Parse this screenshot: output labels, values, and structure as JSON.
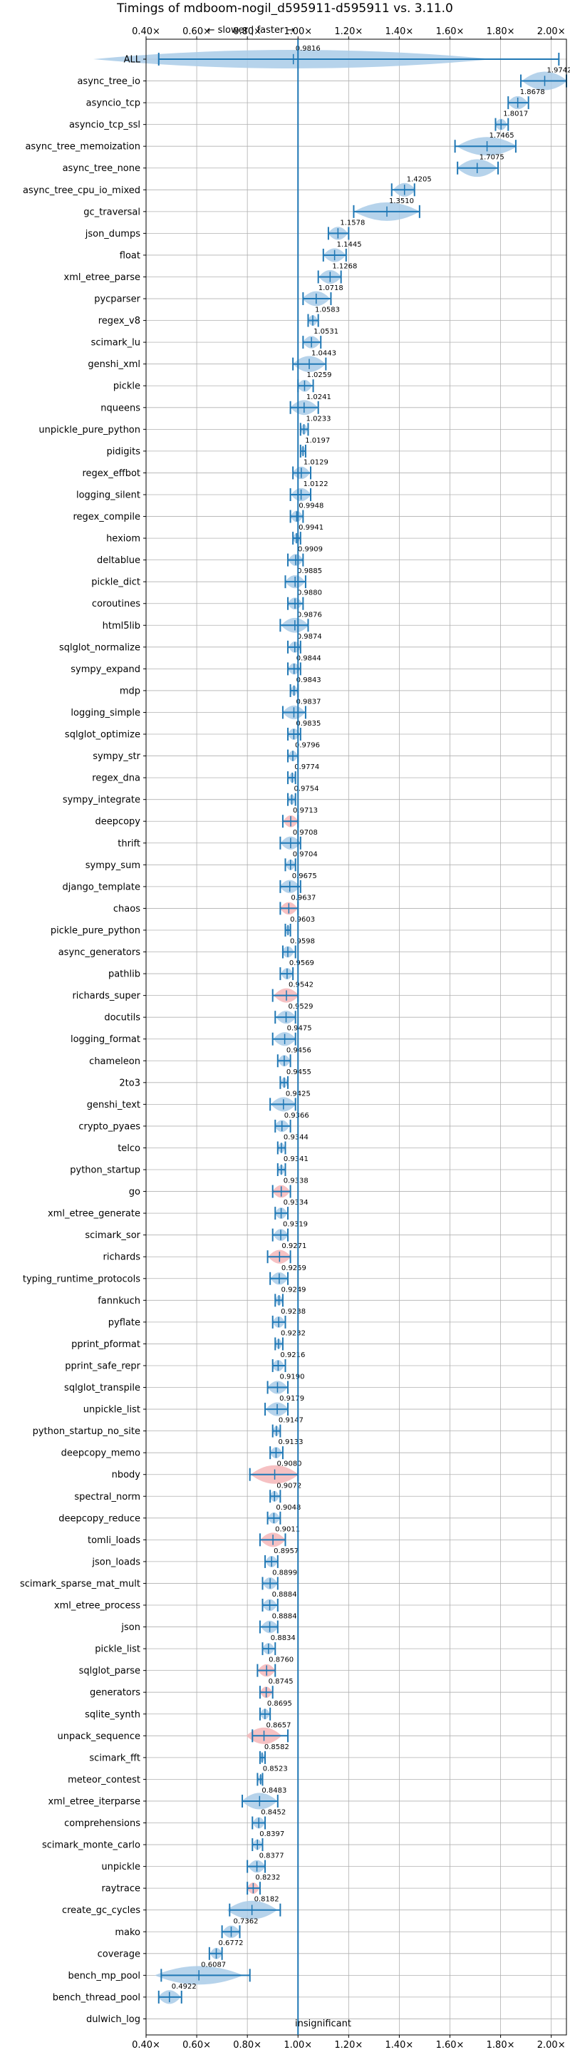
{
  "chart_data": {
    "type": "violin",
    "title": "Timings of mdboom-nogil_d595911-d595911 vs. 3.11.0",
    "direction_label": "← slower | faster →",
    "insignificant_label": "insignificant",
    "xlim": [
      0.4,
      2.06
    ],
    "xticks": [
      0.4,
      0.6,
      0.8,
      1.0,
      1.2,
      1.4,
      1.6,
      1.8,
      2.0
    ],
    "xtick_labels": [
      "0.40×",
      "0.60×",
      "0.80×",
      "1.00×",
      "1.20×",
      "1.40×",
      "1.60×",
      "1.80×",
      "2.00×"
    ],
    "reference_line": 1.0,
    "grid": true,
    "colors": {
      "normal": "#1f77b4",
      "violin_normal": "#a9cbe8",
      "violin_slow": "#f4b6b8",
      "line": "#1f77b4"
    },
    "benchmarks": [
      {
        "name": "ALL",
        "value": 0.9816,
        "label": "0.9816",
        "lo": 0.45,
        "hi": 2.03
      },
      {
        "name": "async_tree_io",
        "value": 1.9742,
        "label": "1.9742",
        "lo": 1.88,
        "hi": 2.06
      },
      {
        "name": "asyncio_tcp",
        "value": 1.8678,
        "label": "1.8678",
        "lo": 1.83,
        "hi": 1.91
      },
      {
        "name": "asyncio_tcp_ssl",
        "value": 1.8017,
        "label": "1.8017",
        "lo": 1.78,
        "hi": 1.83
      },
      {
        "name": "async_tree_memoization",
        "value": 1.7465,
        "label": "1.7465",
        "lo": 1.62,
        "hi": 1.86
      },
      {
        "name": "async_tree_none",
        "value": 1.7075,
        "label": "1.7075",
        "lo": 1.63,
        "hi": 1.79
      },
      {
        "name": "async_tree_cpu_io_mixed",
        "value": 1.4205,
        "label": "1.4205",
        "lo": 1.37,
        "hi": 1.46
      },
      {
        "name": "gc_traversal",
        "value": 1.351,
        "label": "1.3510",
        "lo": 1.22,
        "hi": 1.48
      },
      {
        "name": "json_dumps",
        "value": 1.1578,
        "label": "1.1578",
        "lo": 1.12,
        "hi": 1.2
      },
      {
        "name": "float",
        "value": 1.1445,
        "label": "1.1445",
        "lo": 1.1,
        "hi": 1.19
      },
      {
        "name": "xml_etree_parse",
        "value": 1.1268,
        "label": "1.1268",
        "lo": 1.08,
        "hi": 1.17
      },
      {
        "name": "pycparser",
        "value": 1.0718,
        "label": "1.0718",
        "lo": 1.02,
        "hi": 1.13
      },
      {
        "name": "regex_v8",
        "value": 1.0583,
        "label": "1.0583",
        "lo": 1.04,
        "hi": 1.08
      },
      {
        "name": "scimark_lu",
        "value": 1.0531,
        "label": "1.0531",
        "lo": 1.02,
        "hi": 1.09
      },
      {
        "name": "genshi_xml",
        "value": 1.0443,
        "label": "1.0443",
        "lo": 0.98,
        "hi": 1.11
      },
      {
        "name": "pickle",
        "value": 1.0259,
        "label": "1.0259",
        "lo": 1.0,
        "hi": 1.06
      },
      {
        "name": "nqueens",
        "value": 1.0241,
        "label": "1.0241",
        "lo": 0.97,
        "hi": 1.08
      },
      {
        "name": "unpickle_pure_python",
        "value": 1.0233,
        "label": "1.0233",
        "lo": 1.01,
        "hi": 1.04
      },
      {
        "name": "pidigits",
        "value": 1.0197,
        "label": "1.0197",
        "lo": 1.01,
        "hi": 1.03
      },
      {
        "name": "regex_effbot",
        "value": 1.0129,
        "label": "1.0129",
        "lo": 0.98,
        "hi": 1.05
      },
      {
        "name": "logging_silent",
        "value": 1.0122,
        "label": "1.0122",
        "lo": 0.97,
        "hi": 1.05
      },
      {
        "name": "regex_compile",
        "value": 0.9948,
        "label": "0.9948",
        "lo": 0.97,
        "hi": 1.02
      },
      {
        "name": "hexiom",
        "value": 0.9941,
        "label": "0.9941",
        "lo": 0.98,
        "hi": 1.01
      },
      {
        "name": "deltablue",
        "value": 0.9909,
        "label": "0.9909",
        "lo": 0.96,
        "hi": 1.02
      },
      {
        "name": "pickle_dict",
        "value": 0.9885,
        "label": "0.9885",
        "lo": 0.95,
        "hi": 1.03
      },
      {
        "name": "coroutines",
        "value": 0.988,
        "label": "0.9880",
        "lo": 0.96,
        "hi": 1.02
      },
      {
        "name": "html5lib",
        "value": 0.9876,
        "label": "0.9876",
        "lo": 0.93,
        "hi": 1.04
      },
      {
        "name": "sqlglot_normalize",
        "value": 0.9874,
        "label": "0.9874",
        "lo": 0.96,
        "hi": 1.01
      },
      {
        "name": "sympy_expand",
        "value": 0.9844,
        "label": "0.9844",
        "lo": 0.96,
        "hi": 1.01
      },
      {
        "name": "mdp",
        "value": 0.9843,
        "label": "0.9843",
        "lo": 0.97,
        "hi": 1.0
      },
      {
        "name": "logging_simple",
        "value": 0.9837,
        "label": "0.9837",
        "lo": 0.94,
        "hi": 1.03
      },
      {
        "name": "sqlglot_optimize",
        "value": 0.9835,
        "label": "0.9835",
        "lo": 0.96,
        "hi": 1.01
      },
      {
        "name": "sympy_str",
        "value": 0.9796,
        "label": "0.9796",
        "lo": 0.96,
        "hi": 1.0
      },
      {
        "name": "regex_dna",
        "value": 0.9774,
        "label": "0.9774",
        "lo": 0.96,
        "hi": 0.99
      },
      {
        "name": "sympy_integrate",
        "value": 0.9754,
        "label": "0.9754",
        "lo": 0.96,
        "hi": 0.99
      },
      {
        "name": "deepcopy",
        "value": 0.9713,
        "label": "0.9713",
        "lo": 0.94,
        "hi": 1.0,
        "slower": true
      },
      {
        "name": "thrift",
        "value": 0.9708,
        "label": "0.9708",
        "lo": 0.93,
        "hi": 1.01
      },
      {
        "name": "sympy_sum",
        "value": 0.9704,
        "label": "0.9704",
        "lo": 0.95,
        "hi": 0.99
      },
      {
        "name": "django_template",
        "value": 0.9675,
        "label": "0.9675",
        "lo": 0.93,
        "hi": 1.01
      },
      {
        "name": "chaos",
        "value": 0.9637,
        "label": "0.9637",
        "lo": 0.93,
        "hi": 1.0,
        "slower": true
      },
      {
        "name": "pickle_pure_python",
        "value": 0.9603,
        "label": "0.9603",
        "lo": 0.95,
        "hi": 0.97
      },
      {
        "name": "async_generators",
        "value": 0.9598,
        "label": "0.9598",
        "lo": 0.94,
        "hi": 0.99
      },
      {
        "name": "pathlib",
        "value": 0.9569,
        "label": "0.9569",
        "lo": 0.93,
        "hi": 0.98
      },
      {
        "name": "richards_super",
        "value": 0.9542,
        "label": "0.9542",
        "lo": 0.9,
        "hi": 1.0,
        "slower": true
      },
      {
        "name": "docutils",
        "value": 0.9529,
        "label": "0.9529",
        "lo": 0.91,
        "hi": 0.99
      },
      {
        "name": "logging_format",
        "value": 0.9475,
        "label": "0.9475",
        "lo": 0.9,
        "hi": 0.99
      },
      {
        "name": "chameleon",
        "value": 0.9456,
        "label": "0.9456",
        "lo": 0.92,
        "hi": 0.97
      },
      {
        "name": "2to3",
        "value": 0.9455,
        "label": "0.9455",
        "lo": 0.93,
        "hi": 0.96
      },
      {
        "name": "genshi_text",
        "value": 0.9425,
        "label": "0.9425",
        "lo": 0.89,
        "hi": 0.99
      },
      {
        "name": "crypto_pyaes",
        "value": 0.9366,
        "label": "0.9366",
        "lo": 0.91,
        "hi": 0.97
      },
      {
        "name": "telco",
        "value": 0.9344,
        "label": "0.9344",
        "lo": 0.92,
        "hi": 0.95
      },
      {
        "name": "python_startup",
        "value": 0.9341,
        "label": "0.9341",
        "lo": 0.92,
        "hi": 0.95
      },
      {
        "name": "go",
        "value": 0.9338,
        "label": "0.9338",
        "lo": 0.9,
        "hi": 0.97,
        "slower": true
      },
      {
        "name": "xml_etree_generate",
        "value": 0.9334,
        "label": "0.9334",
        "lo": 0.91,
        "hi": 0.96
      },
      {
        "name": "scimark_sor",
        "value": 0.9319,
        "label": "0.9319",
        "lo": 0.9,
        "hi": 0.96
      },
      {
        "name": "richards",
        "value": 0.9271,
        "label": "0.9271",
        "lo": 0.88,
        "hi": 0.97,
        "slower": true
      },
      {
        "name": "typing_runtime_protocols",
        "value": 0.9259,
        "label": "0.9259",
        "lo": 0.89,
        "hi": 0.96
      },
      {
        "name": "fannkuch",
        "value": 0.9249,
        "label": "0.9249",
        "lo": 0.91,
        "hi": 0.94
      },
      {
        "name": "pyflate",
        "value": 0.9238,
        "label": "0.9238",
        "lo": 0.9,
        "hi": 0.95
      },
      {
        "name": "pprint_pformat",
        "value": 0.9232,
        "label": "0.9232",
        "lo": 0.91,
        "hi": 0.94
      },
      {
        "name": "pprint_safe_repr",
        "value": 0.9216,
        "label": "0.9216",
        "lo": 0.9,
        "hi": 0.95
      },
      {
        "name": "sqlglot_transpile",
        "value": 0.919,
        "label": "0.9190",
        "lo": 0.88,
        "hi": 0.96
      },
      {
        "name": "unpickle_list",
        "value": 0.9179,
        "label": "0.9179",
        "lo": 0.87,
        "hi": 0.96
      },
      {
        "name": "python_startup_no_site",
        "value": 0.9147,
        "label": "0.9147",
        "lo": 0.9,
        "hi": 0.93
      },
      {
        "name": "deepcopy_memo",
        "value": 0.9133,
        "label": "0.9133",
        "lo": 0.89,
        "hi": 0.94
      },
      {
        "name": "nbody",
        "value": 0.908,
        "label": "0.9080",
        "lo": 0.81,
        "hi": 1.0,
        "slower": true
      },
      {
        "name": "spectral_norm",
        "value": 0.9072,
        "label": "0.9072",
        "lo": 0.89,
        "hi": 0.93
      },
      {
        "name": "deepcopy_reduce",
        "value": 0.9048,
        "label": "0.9048",
        "lo": 0.88,
        "hi": 0.93
      },
      {
        "name": "tomli_loads",
        "value": 0.9011,
        "label": "0.9011",
        "lo": 0.85,
        "hi": 0.95,
        "slower": true
      },
      {
        "name": "json_loads",
        "value": 0.8957,
        "label": "0.8957",
        "lo": 0.87,
        "hi": 0.92
      },
      {
        "name": "scimark_sparse_mat_mult",
        "value": 0.8899,
        "label": "0.8899",
        "lo": 0.86,
        "hi": 0.92
      },
      {
        "name": "xml_etree_process",
        "value": 0.8884,
        "label": "0.8884",
        "lo": 0.86,
        "hi": 0.92
      },
      {
        "name": "json",
        "value": 0.8884,
        "label": "0.8884",
        "lo": 0.85,
        "hi": 0.92
      },
      {
        "name": "pickle_list",
        "value": 0.8834,
        "label": "0.8834",
        "lo": 0.86,
        "hi": 0.91
      },
      {
        "name": "sqlglot_parse",
        "value": 0.876,
        "label": "0.8760",
        "lo": 0.84,
        "hi": 0.91,
        "slower": true
      },
      {
        "name": "generators",
        "value": 0.8745,
        "label": "0.8745",
        "lo": 0.85,
        "hi": 0.9,
        "slower": true
      },
      {
        "name": "sqlite_synth",
        "value": 0.8695,
        "label": "0.8695",
        "lo": 0.85,
        "hi": 0.89
      },
      {
        "name": "unpack_sequence",
        "value": 0.8657,
        "label": "0.8657",
        "lo": 0.82,
        "hi": 0.96,
        "slower": true
      },
      {
        "name": "scimark_fft",
        "value": 0.8582,
        "label": "0.8582",
        "lo": 0.85,
        "hi": 0.87
      },
      {
        "name": "meteor_contest",
        "value": 0.8523,
        "label": "0.8523",
        "lo": 0.84,
        "hi": 0.86
      },
      {
        "name": "xml_etree_iterparse",
        "value": 0.8483,
        "label": "0.8483",
        "lo": 0.78,
        "hi": 0.92
      },
      {
        "name": "comprehensions",
        "value": 0.8452,
        "label": "0.8452",
        "lo": 0.82,
        "hi": 0.87
      },
      {
        "name": "scimark_monte_carlo",
        "value": 0.8397,
        "label": "0.8397",
        "lo": 0.82,
        "hi": 0.86
      },
      {
        "name": "unpickle",
        "value": 0.8377,
        "label": "0.8377",
        "lo": 0.8,
        "hi": 0.87
      },
      {
        "name": "raytrace",
        "value": 0.8232,
        "label": "0.8232",
        "lo": 0.8,
        "hi": 0.85,
        "slower": true
      },
      {
        "name": "create_gc_cycles",
        "value": 0.8182,
        "label": "0.8182",
        "lo": 0.73,
        "hi": 0.93
      },
      {
        "name": "mako",
        "value": 0.7362,
        "label": "0.7362",
        "lo": 0.7,
        "hi": 0.77
      },
      {
        "name": "coverage",
        "value": 0.6772,
        "label": "0.6772",
        "lo": 0.65,
        "hi": 0.7
      },
      {
        "name": "bench_mp_pool",
        "value": 0.6087,
        "label": "0.6087",
        "lo": 0.46,
        "hi": 0.81
      },
      {
        "name": "bench_thread_pool",
        "value": 0.4922,
        "label": "0.4922",
        "lo": 0.45,
        "hi": 0.54
      },
      {
        "name": "dulwich_log",
        "value": null,
        "label": "",
        "lo": null,
        "hi": null
      }
    ]
  }
}
